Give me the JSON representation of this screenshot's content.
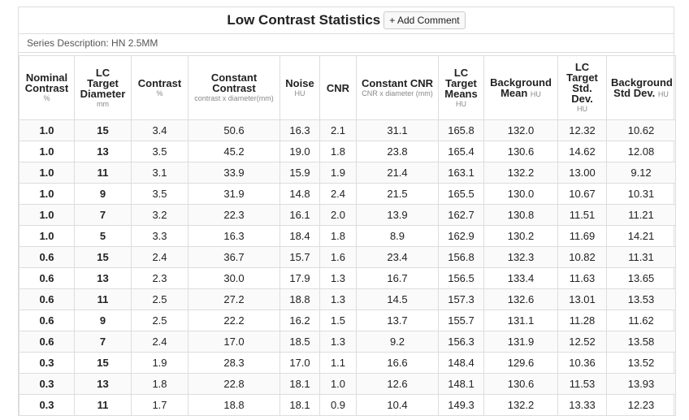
{
  "header": {
    "title": "Low Contrast Statistics",
    "button": "+ Add Comment"
  },
  "series_description": "Series Description: HN 2.5MM",
  "table": {
    "columns": [
      {
        "label": "Nominal Contrast",
        "unit": "%"
      },
      {
        "label": "LC Target Diameter",
        "unit": "mm"
      },
      {
        "label": "Contrast",
        "unit": "%"
      },
      {
        "label": "Constant Contrast",
        "unit": "contrast x diameter(mm)"
      },
      {
        "label": "Noise",
        "unit": "HU"
      },
      {
        "label": "CNR"
      },
      {
        "label": "Constant CNR",
        "unit": "CNR x diameter (mm)"
      },
      {
        "label": "LC Target Means",
        "unit": "HU"
      },
      {
        "label": "Background Mean",
        "unit": "HU"
      },
      {
        "label": "LC Target Std. Dev.",
        "unit": "HU"
      },
      {
        "label": "Background Std Dev.",
        "unit": "HU"
      }
    ],
    "rows": [
      [
        "1.0",
        "15",
        "3.4",
        "50.6",
        "16.3",
        "2.1",
        "31.1",
        "165.8",
        "132.0",
        "12.32",
        "10.62"
      ],
      [
        "1.0",
        "13",
        "3.5",
        "45.2",
        "19.0",
        "1.8",
        "23.8",
        "165.4",
        "130.6",
        "14.62",
        "12.08"
      ],
      [
        "1.0",
        "11",
        "3.1",
        "33.9",
        "15.9",
        "1.9",
        "21.4",
        "163.1",
        "132.2",
        "13.00",
        "9.12"
      ],
      [
        "1.0",
        "9",
        "3.5",
        "31.9",
        "14.8",
        "2.4",
        "21.5",
        "165.5",
        "130.0",
        "10.67",
        "10.31"
      ],
      [
        "1.0",
        "7",
        "3.2",
        "22.3",
        "16.1",
        "2.0",
        "13.9",
        "162.7",
        "130.8",
        "11.51",
        "11.21"
      ],
      [
        "1.0",
        "5",
        "3.3",
        "16.3",
        "18.4",
        "1.8",
        "8.9",
        "162.9",
        "130.2",
        "11.69",
        "14.21"
      ],
      [
        "0.6",
        "15",
        "2.4",
        "36.7",
        "15.7",
        "1.6",
        "23.4",
        "156.8",
        "132.3",
        "10.82",
        "11.31"
      ],
      [
        "0.6",
        "13",
        "2.3",
        "30.0",
        "17.9",
        "1.3",
        "16.7",
        "156.5",
        "133.4",
        "11.63",
        "13.65"
      ],
      [
        "0.6",
        "11",
        "2.5",
        "27.2",
        "18.8",
        "1.3",
        "14.5",
        "157.3",
        "132.6",
        "13.01",
        "13.53"
      ],
      [
        "0.6",
        "9",
        "2.5",
        "22.2",
        "16.2",
        "1.5",
        "13.7",
        "155.7",
        "131.1",
        "11.28",
        "11.62"
      ],
      [
        "0.6",
        "7",
        "2.4",
        "17.0",
        "18.5",
        "1.3",
        "9.2",
        "156.3",
        "131.9",
        "12.52",
        "13.58"
      ],
      [
        "0.3",
        "15",
        "1.9",
        "28.3",
        "17.0",
        "1.1",
        "16.6",
        "148.4",
        "129.6",
        "10.36",
        "13.52"
      ],
      [
        "0.3",
        "13",
        "1.8",
        "22.8",
        "18.1",
        "1.0",
        "12.6",
        "148.1",
        "130.6",
        "11.53",
        "13.93"
      ],
      [
        "0.3",
        "11",
        "1.7",
        "18.8",
        "18.1",
        "0.9",
        "10.4",
        "149.3",
        "132.2",
        "13.33",
        "12.23"
      ]
    ]
  }
}
